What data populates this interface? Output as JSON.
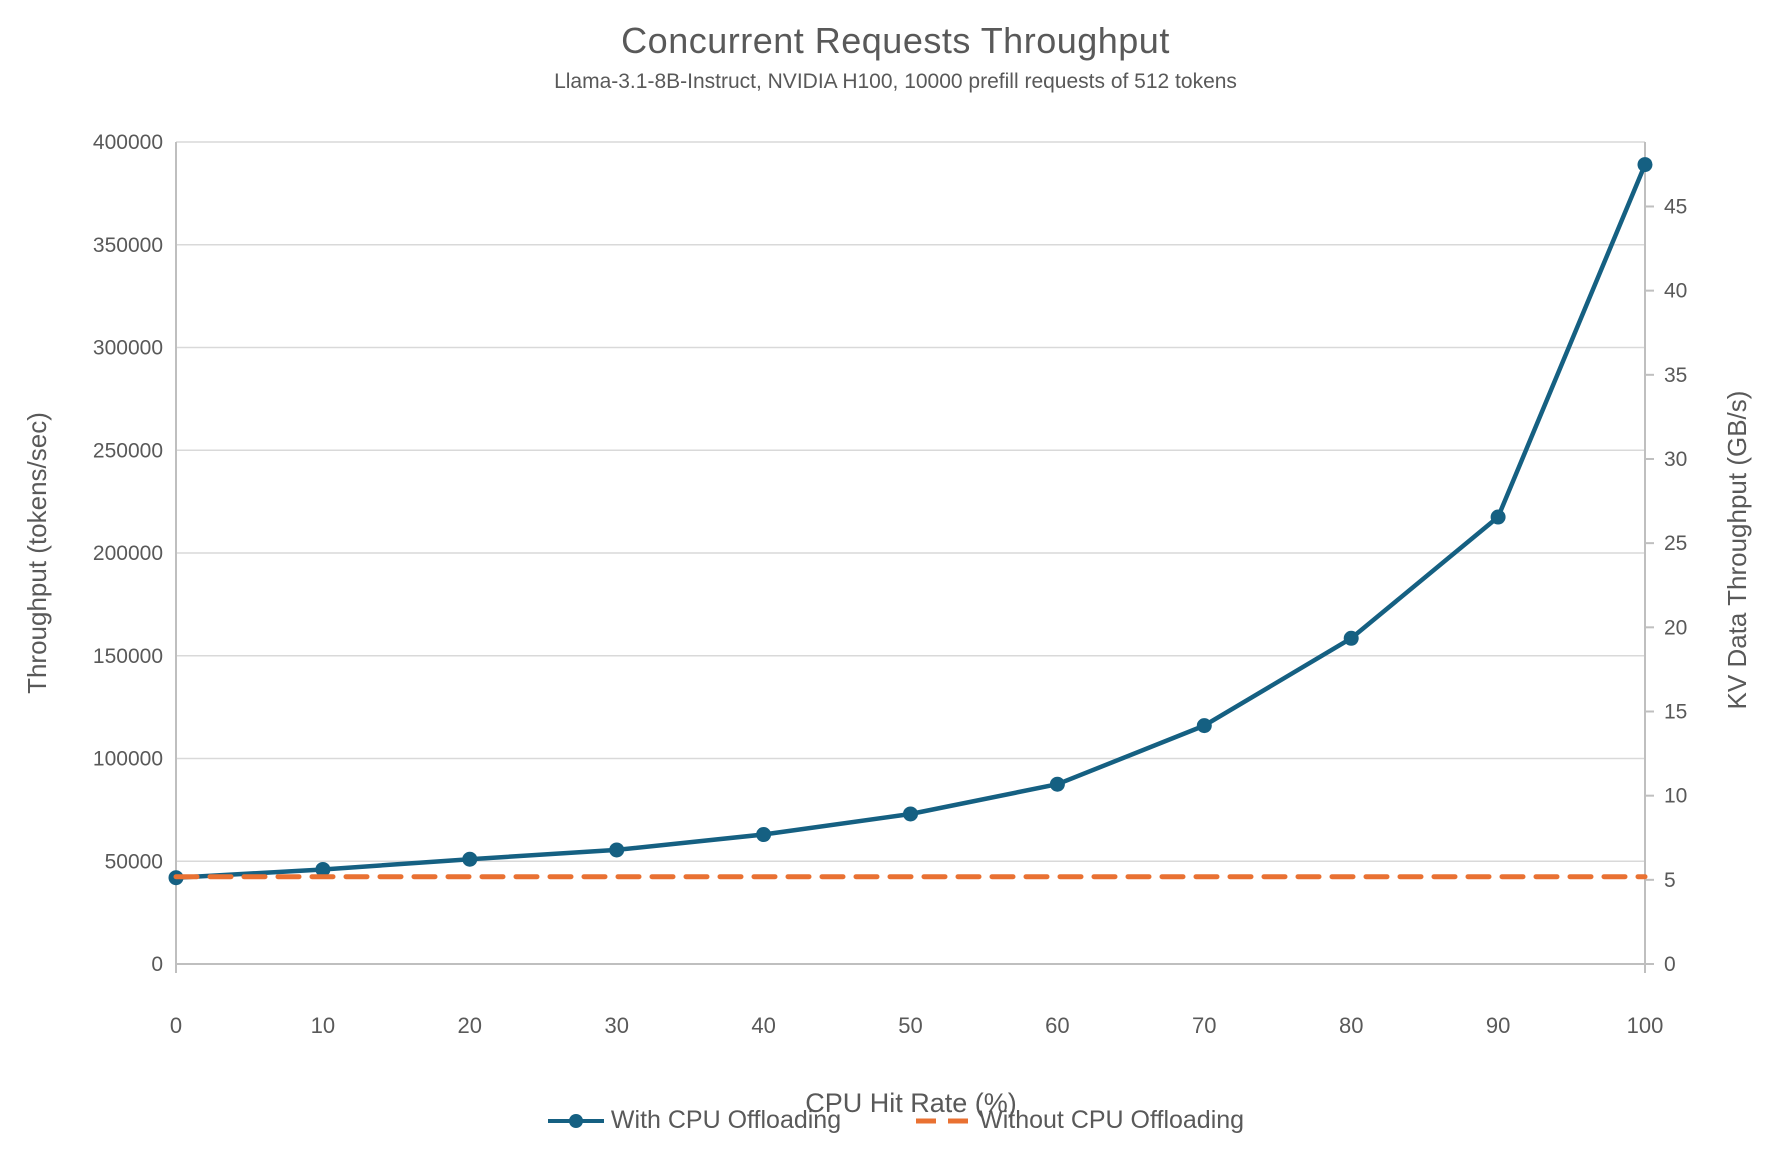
{
  "title": "Concurrent Requests Throughput",
  "subtitle": "Llama-3.1-8B-Instruct, NVIDIA H100, 10000 prefill requests of 512 tokens",
  "chart_data": {
    "type": "line",
    "x": [
      0,
      10,
      20,
      30,
      40,
      50,
      60,
      70,
      80,
      90,
      100
    ],
    "series": [
      {
        "name": "With CPU Offloading",
        "values": [
          42000,
          46000,
          51000,
          55500,
          63000,
          73000,
          87500,
          116000,
          158500,
          217500,
          389000
        ],
        "color": "#156082",
        "style": "solid",
        "markers": "circle"
      },
      {
        "name": "Without CPU Offloading",
        "values": [
          42500,
          42500,
          42500,
          42500,
          42500,
          42500,
          42500,
          42500,
          42500,
          42500,
          42500
        ],
        "color": "#E97132",
        "style": "dashed",
        "markers": "none"
      }
    ],
    "xlabel": "CPU Hit Rate (%)",
    "ylabel_left": "Throughput (tokens/sec)",
    "ylabel_right": "KV Data Throughput (GB/s)",
    "left_axis": {
      "min": 0,
      "max": 400000,
      "tick_step": 50000,
      "ticks": [
        0,
        50000,
        100000,
        150000,
        200000,
        250000,
        300000,
        350000,
        400000
      ]
    },
    "right_axis": {
      "min": 0,
      "max": 48.83,
      "tick_step": 5,
      "ticks": [
        0,
        5,
        10,
        15,
        20,
        25,
        30,
        35,
        40,
        45
      ]
    },
    "x_axis": {
      "min": 0,
      "max": 100,
      "tick_step": 10,
      "ticks": [
        0,
        10,
        20,
        30,
        40,
        50,
        60,
        70,
        80,
        90,
        100
      ]
    },
    "grid": true,
    "legend_position": "bottom"
  },
  "colors": {
    "series_with": "#156082",
    "series_without": "#E97132",
    "gridline": "#D9D9D9",
    "axis_line": "#BFBFBF",
    "text": "#595959"
  }
}
